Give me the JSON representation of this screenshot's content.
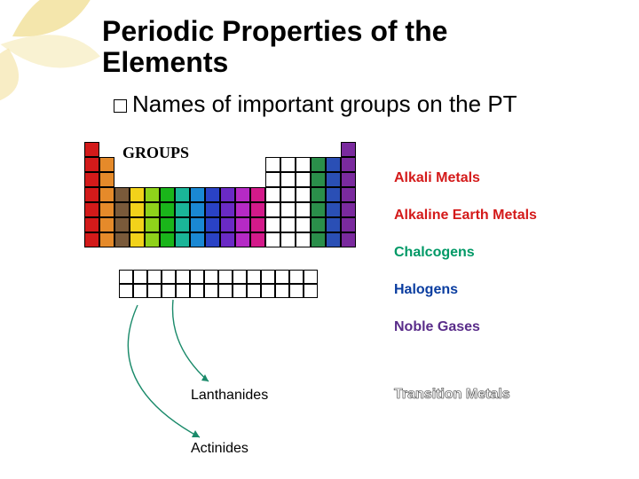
{
  "title": "Periodic Properties of the Elements",
  "subtitle": "Names of important groups on the PT",
  "groups_label": "GROUPS",
  "legend": [
    {
      "label": "Alkali Metals",
      "color": "#d41a1a"
    },
    {
      "label": "Alkaline Earth Metals",
      "color": "#d41a1a"
    },
    {
      "label": "Chalcogens",
      "color": "#009966"
    },
    {
      "label": "Halogens",
      "color": "#0a3da0"
    },
    {
      "label": "Noble Gases",
      "color": "#5a2d8a"
    }
  ],
  "transition_metals": {
    "label": "Transition Metals",
    "fill": "#ffffff",
    "stroke": "#4a4a4a"
  },
  "lanthanides_label": "Lanthanides",
  "actinides_label": "Actinides",
  "colors": {
    "alkali": "#d31a1a",
    "alkaline": "#e58a2a",
    "tm1": "#7a5a3a",
    "tm2": "#f2d21a",
    "tm3": "#8fd21a",
    "tm4": "#1ab51a",
    "tm5": "#1ab598",
    "tm6": "#1a88d3",
    "tm7": "#2a42c5",
    "tm8": "#6a2ac5",
    "tm9": "#b52ac5",
    "tm10": "#d31a8a",
    "boron": "#ffffff",
    "carbon": "#ffffff",
    "nitrogen": "#ffffff",
    "chalcogen": "#2a8f4a",
    "halogen": "#2a4fb5",
    "noble": "#7a2a9e",
    "deco": "#e8c84a"
  },
  "pt": {
    "cols": 18,
    "rows": 7,
    "transition_start_col": 3,
    "transition_end_col": 12,
    "main_right_start_col": 13
  },
  "f_block": {
    "rows": 2,
    "cols": 14
  }
}
